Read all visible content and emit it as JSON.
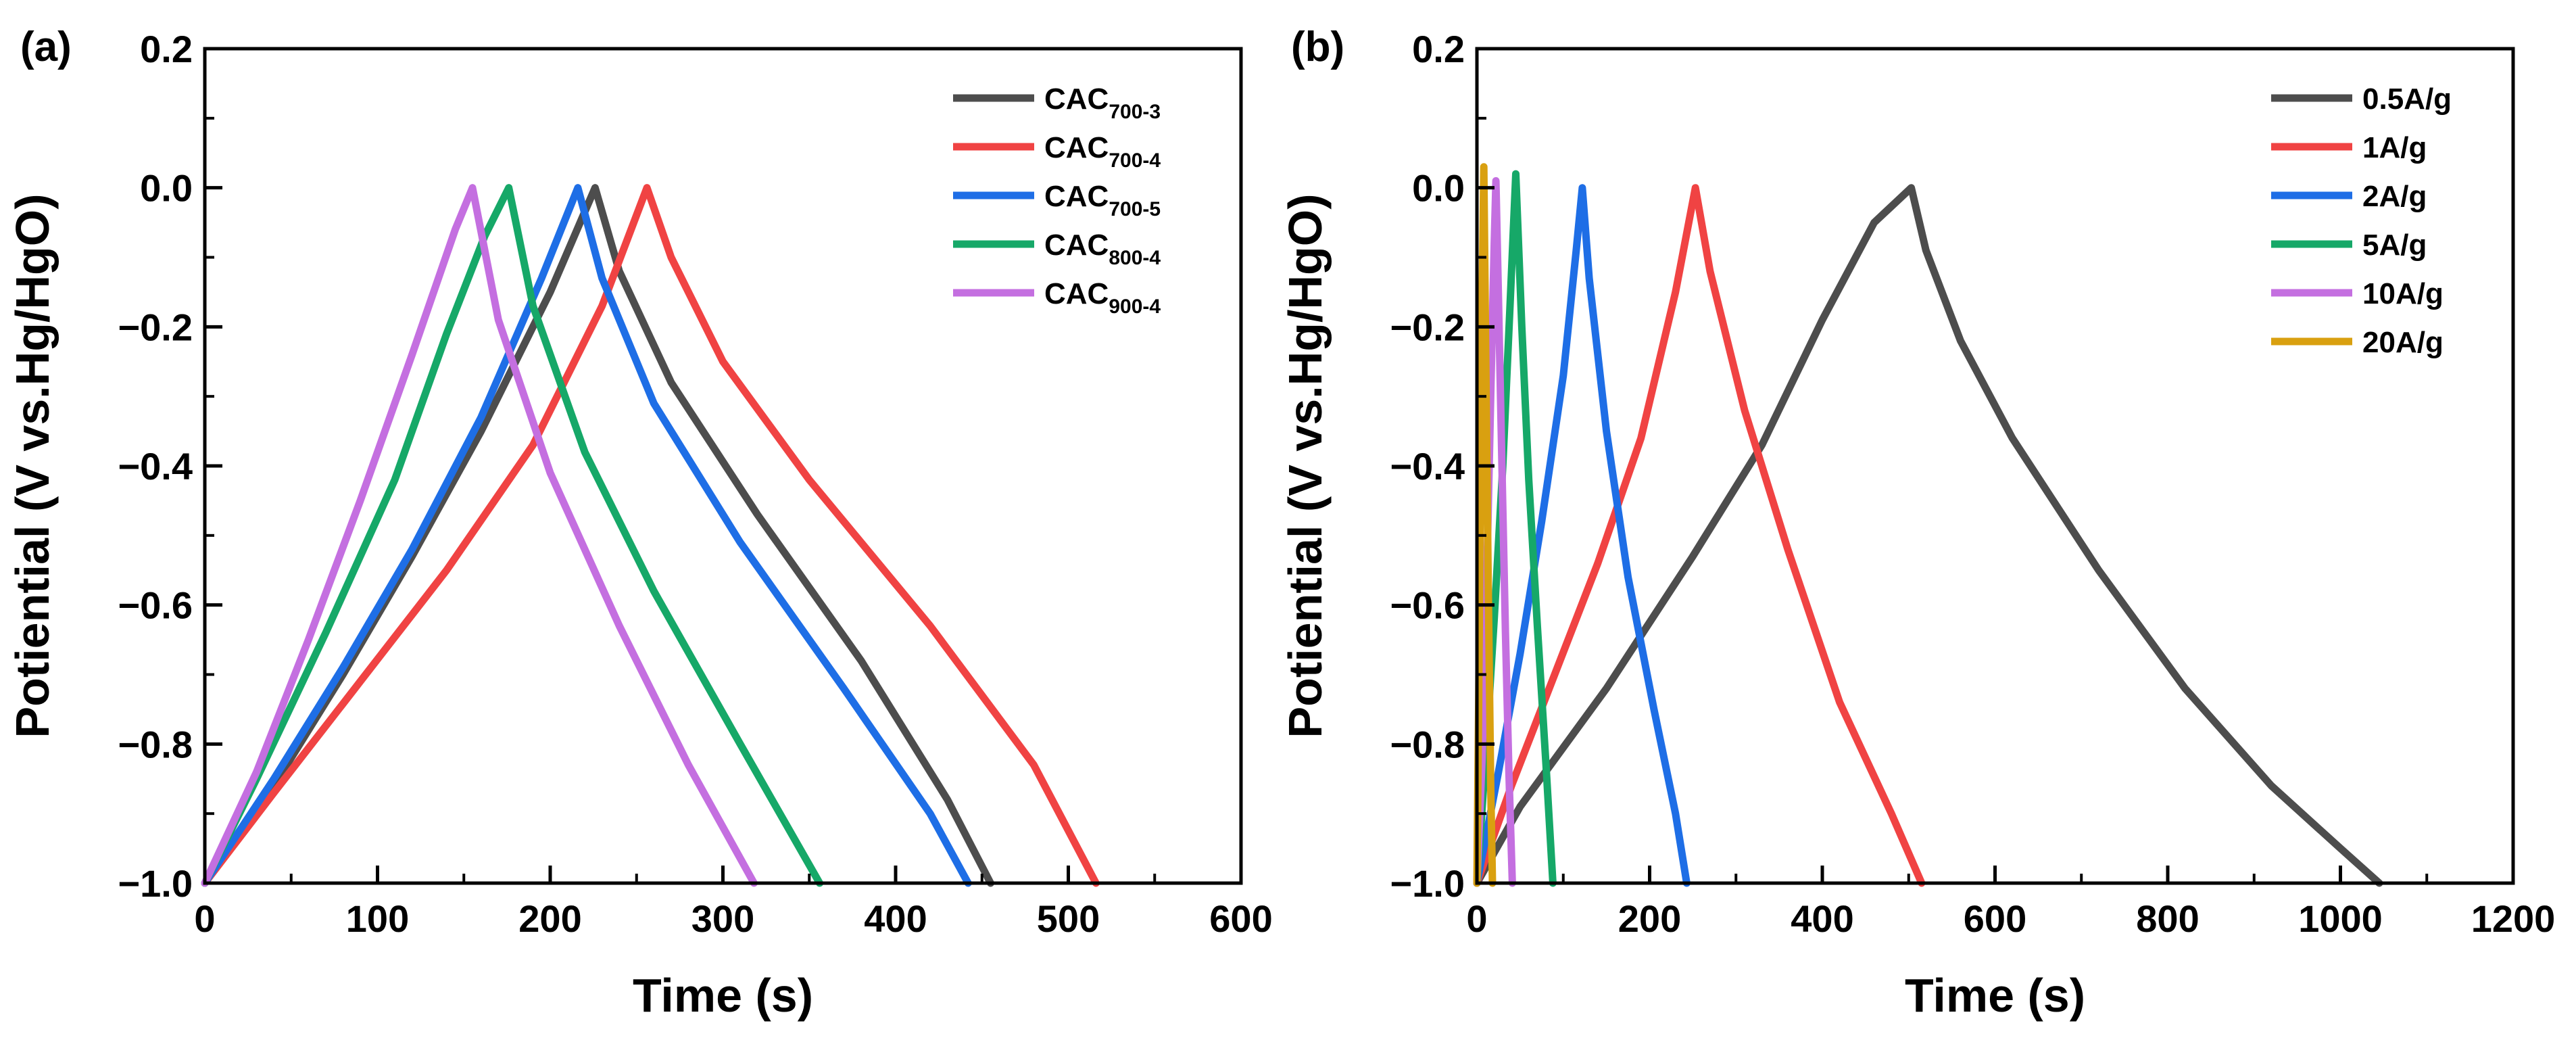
{
  "chart_data": [
    {
      "type": "line",
      "panel_label": "(a)",
      "xlabel": "Time (s)",
      "ylabel": "Potiential (V vs.Hg/HgO)",
      "xlim": [
        0,
        600
      ],
      "ylim": [
        -1.0,
        0.2
      ],
      "xticks": [
        "0",
        "100",
        "200",
        "300",
        "400",
        "500",
        "600"
      ],
      "yticks": [
        "−1.0",
        "−0.8",
        "−0.6",
        "−0.4",
        "−0.2",
        "0.0",
        "0.2"
      ],
      "legend_position": "top-right",
      "series": [
        {
          "name": "CAC",
          "sub": "700-3",
          "color": "#4d4d4d",
          "points": [
            [
              0,
              -1.0
            ],
            [
              40,
              -0.86
            ],
            [
              80,
              -0.7
            ],
            [
              120,
              -0.53
            ],
            [
              160,
              -0.35
            ],
            [
              200,
              -0.15
            ],
            [
              226,
              0.0
            ],
            [
              240,
              -0.12
            ],
            [
              270,
              -0.28
            ],
            [
              320,
              -0.47
            ],
            [
              380,
              -0.68
            ],
            [
              430,
              -0.88
            ],
            [
              455,
              -1.0
            ]
          ]
        },
        {
          "name": "CAC",
          "sub": "700-4",
          "color": "#f04343",
          "points": [
            [
              0,
              -1.0
            ],
            [
              40,
              -0.87
            ],
            [
              90,
              -0.71
            ],
            [
              140,
              -0.55
            ],
            [
              190,
              -0.37
            ],
            [
              230,
              -0.17
            ],
            [
              256,
              0.0
            ],
            [
              270,
              -0.1
            ],
            [
              300,
              -0.25
            ],
            [
              350,
              -0.42
            ],
            [
              420,
              -0.63
            ],
            [
              480,
              -0.83
            ],
            [
              516,
              -1.0
            ]
          ]
        },
        {
          "name": "CAC",
          "sub": "700-5",
          "color": "#1e6ee6",
          "points": [
            [
              0,
              -1.0
            ],
            [
              40,
              -0.85
            ],
            [
              80,
              -0.69
            ],
            [
              120,
              -0.52
            ],
            [
              160,
              -0.33
            ],
            [
              195,
              -0.13
            ],
            [
              216,
              0.0
            ],
            [
              230,
              -0.13
            ],
            [
              260,
              -0.31
            ],
            [
              310,
              -0.51
            ],
            [
              370,
              -0.72
            ],
            [
              420,
              -0.9
            ],
            [
              442,
              -1.0
            ]
          ]
        },
        {
          "name": "CAC",
          "sub": "800-4",
          "color": "#16a868",
          "points": [
            [
              0,
              -1.0
            ],
            [
              30,
              -0.85
            ],
            [
              70,
              -0.64
            ],
            [
              110,
              -0.42
            ],
            [
              140,
              -0.21
            ],
            [
              162,
              -0.07
            ],
            [
              176,
              0.0
            ],
            [
              190,
              -0.17
            ],
            [
              220,
              -0.38
            ],
            [
              260,
              -0.58
            ],
            [
              310,
              -0.8
            ],
            [
              356,
              -1.0
            ]
          ]
        },
        {
          "name": "CAC",
          "sub": "900-4",
          "color": "#c46fe0",
          "points": [
            [
              0,
              -1.0
            ],
            [
              30,
              -0.84
            ],
            [
              60,
              -0.65
            ],
            [
              90,
              -0.45
            ],
            [
              120,
              -0.24
            ],
            [
              145,
              -0.06
            ],
            [
              155,
              0.0
            ],
            [
              170,
              -0.19
            ],
            [
              200,
              -0.41
            ],
            [
              240,
              -0.63
            ],
            [
              280,
              -0.83
            ],
            [
              318,
              -1.0
            ]
          ]
        }
      ]
    },
    {
      "type": "line",
      "panel_label": "(b)",
      "xlabel": "Time (s)",
      "ylabel": "Potiential (V vs.Hg/HgO)",
      "xlim": [
        0,
        1200
      ],
      "ylim": [
        -1.0,
        0.2
      ],
      "xticks": [
        "0",
        "200",
        "400",
        "600",
        "800",
        "1000",
        "1200"
      ],
      "yticks": [
        "−1.0",
        "−0.8",
        "−0.6",
        "−0.4",
        "−0.2",
        "0.0",
        "0.2"
      ],
      "legend_position": "top-right",
      "series": [
        {
          "name": "0.5A/g",
          "color": "#4d4d4d",
          "points": [
            [
              0,
              -1.0
            ],
            [
              50,
              -0.89
            ],
            [
              150,
              -0.72
            ],
            [
              250,
              -0.53
            ],
            [
              330,
              -0.37
            ],
            [
              400,
              -0.19
            ],
            [
              460,
              -0.05
            ],
            [
              503,
              0.0
            ],
            [
              520,
              -0.09
            ],
            [
              560,
              -0.22
            ],
            [
              620,
              -0.36
            ],
            [
              720,
              -0.55
            ],
            [
              820,
              -0.72
            ],
            [
              920,
              -0.86
            ],
            [
              1000,
              -0.95
            ],
            [
              1045,
              -1.0
            ]
          ]
        },
        {
          "name": "1A/g",
          "color": "#f04343",
          "points": [
            [
              0,
              -1.0
            ],
            [
              40,
              -0.86
            ],
            [
              90,
              -0.7
            ],
            [
              140,
              -0.54
            ],
            [
              190,
              -0.36
            ],
            [
              230,
              -0.15
            ],
            [
              253,
              0.0
            ],
            [
              270,
              -0.12
            ],
            [
              310,
              -0.32
            ],
            [
              360,
              -0.52
            ],
            [
              420,
              -0.74
            ],
            [
              480,
              -0.9
            ],
            [
              515,
              -1.0
            ]
          ]
        },
        {
          "name": "2A/g",
          "color": "#1e6ee6",
          "points": [
            [
              0,
              -1.0
            ],
            [
              25,
              -0.84
            ],
            [
              50,
              -0.67
            ],
            [
              75,
              -0.48
            ],
            [
              100,
              -0.27
            ],
            [
              115,
              -0.09
            ],
            [
              122,
              0.0
            ],
            [
              130,
              -0.13
            ],
            [
              150,
              -0.35
            ],
            [
              175,
              -0.56
            ],
            [
              205,
              -0.75
            ],
            [
              230,
              -0.9
            ],
            [
              243,
              -1.0
            ]
          ]
        },
        {
          "name": "5A/g",
          "color": "#16a868",
          "points": [
            [
              0,
              -1.0
            ],
            [
              10,
              -0.82
            ],
            [
              20,
              -0.62
            ],
            [
              30,
              -0.4
            ],
            [
              38,
              -0.18
            ],
            [
              45,
              0.02
            ],
            [
              52,
              -0.2
            ],
            [
              60,
              -0.42
            ],
            [
              70,
              -0.63
            ],
            [
              80,
              -0.83
            ],
            [
              88,
              -1.0
            ]
          ]
        },
        {
          "name": "10A/g",
          "color": "#c46fe0",
          "points": [
            [
              0,
              -1.0
            ],
            [
              6,
              -0.82
            ],
            [
              11,
              -0.58
            ],
            [
              16,
              -0.3
            ],
            [
              20,
              -0.08
            ],
            [
              22,
              0.01
            ],
            [
              25,
              -0.16
            ],
            [
              29,
              -0.4
            ],
            [
              33,
              -0.64
            ],
            [
              37,
              -0.84
            ],
            [
              41,
              -1.0
            ]
          ]
        },
        {
          "name": "20A/g",
          "color": "#d9a010",
          "points": [
            [
              0,
              -1.0
            ],
            [
              2,
              -0.74
            ],
            [
              4,
              -0.44
            ],
            [
              6,
              -0.16
            ],
            [
              8,
              0.03
            ],
            [
              10,
              -0.22
            ],
            [
              13,
              -0.56
            ],
            [
              16,
              -0.86
            ],
            [
              18,
              -1.0
            ]
          ]
        }
      ]
    }
  ]
}
